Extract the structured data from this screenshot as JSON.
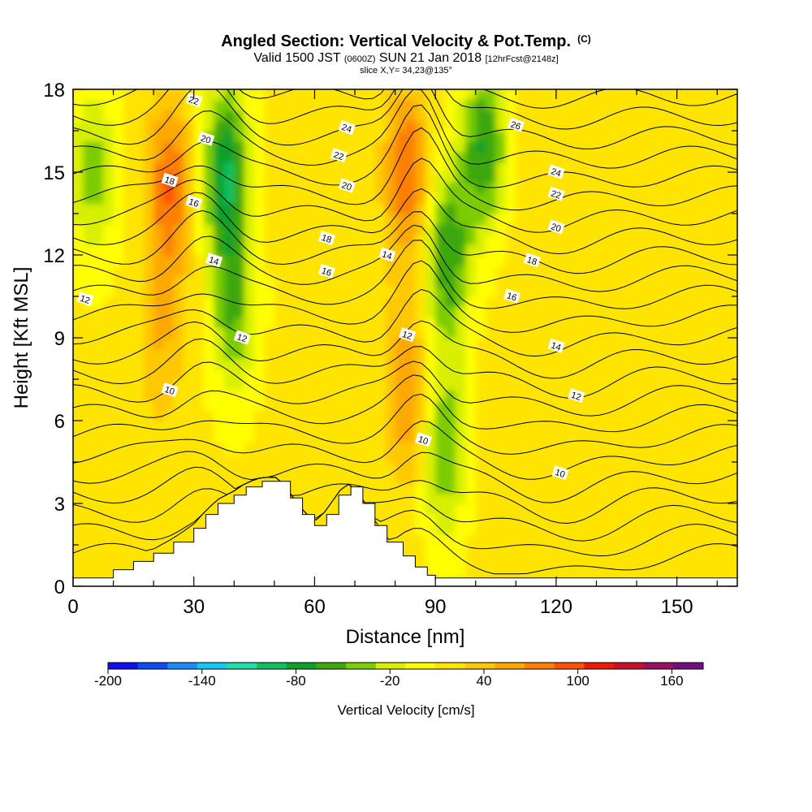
{
  "chart_data": {
    "type": "contour-cross-section",
    "title": "Angled Section: Vertical Velocity & Pot.Temp.",
    "title_mark": "(C)",
    "subtitle": {
      "valid": "Valid 1500 JST",
      "utc": "(0600Z)",
      "date": "SUN 21 Jan 2018",
      "forecast": "[12hrFcst@2148z]",
      "slice": "slice X,Y= 34,23@135°"
    },
    "xlabel": "Distance [nm]",
    "ylabel": "Height [Kft MSL]",
    "xlim": [
      0,
      165
    ],
    "ylim": [
      0,
      18
    ],
    "x_ticks": [
      "0",
      "30",
      "60",
      "90",
      "120",
      "150"
    ],
    "y_ticks": [
      "0",
      "3",
      "6",
      "9",
      "12",
      "15",
      "18"
    ],
    "colorbar": {
      "label": "Vertical Velocity [cm/s]",
      "tick_labels": [
        "-200",
        "-140",
        "-80",
        "-20",
        "40",
        "100",
        "160"
      ],
      "tick_values": [
        -200,
        -140,
        -80,
        -20,
        40,
        100,
        160
      ],
      "min": -200,
      "max": 180,
      "step": 20,
      "colors": [
        "#1010ee",
        "#0a4df2",
        "#1a8cf5",
        "#10c8f2",
        "#20e0a8",
        "#10c060",
        "#0fa02c",
        "#3ca80c",
        "#7ccc06",
        "#d8f000",
        "#ffff00",
        "#ffe400",
        "#ffc800",
        "#ffa800",
        "#ff8000",
        "#ff5000",
        "#ee1a00",
        "#c8102a",
        "#9a1060",
        "#701080"
      ]
    },
    "vertical_velocity_cores": [
      {
        "x": 24,
        "y": 14.5,
        "value": 100
      },
      {
        "x": 22,
        "y": 9,
        "value": 60
      },
      {
        "x": 38,
        "y": 15,
        "value": -80
      },
      {
        "x": 40,
        "y": 10,
        "value": -40
      },
      {
        "x": 83,
        "y": 15,
        "value": 100
      },
      {
        "x": 83,
        "y": 7,
        "value": 80
      },
      {
        "x": 93,
        "y": 12,
        "value": -60
      },
      {
        "x": 92,
        "y": 5,
        "value": -40
      },
      {
        "x": 102,
        "y": 16,
        "value": -60
      },
      {
        "x": 5,
        "y": 15,
        "value": -30
      },
      {
        "x": 65,
        "y": 5,
        "value": 40
      },
      {
        "x": 110,
        "y": 12,
        "value": 30
      },
      {
        "x": 140,
        "y": 10,
        "value": 20
      }
    ],
    "potential_temperature_labels": [
      {
        "x": 30,
        "y": 17.6,
        "text": "22"
      },
      {
        "x": 33,
        "y": 16.2,
        "text": "20"
      },
      {
        "x": 24,
        "y": 14.7,
        "text": "18"
      },
      {
        "x": 30,
        "y": 13.9,
        "text": "16"
      },
      {
        "x": 35,
        "y": 11.8,
        "text": "14"
      },
      {
        "x": 42,
        "y": 9.0,
        "text": "12"
      },
      {
        "x": 24,
        "y": 7.1,
        "text": "10"
      },
      {
        "x": 3,
        "y": 10.4,
        "text": "12"
      },
      {
        "x": 68,
        "y": 16.6,
        "text": "24"
      },
      {
        "x": 66,
        "y": 15.6,
        "text": "22"
      },
      {
        "x": 68,
        "y": 14.5,
        "text": "20"
      },
      {
        "x": 63,
        "y": 12.6,
        "text": "18"
      },
      {
        "x": 63,
        "y": 11.4,
        "text": "16"
      },
      {
        "x": 78,
        "y": 12.0,
        "text": "14"
      },
      {
        "x": 83,
        "y": 9.1,
        "text": "12"
      },
      {
        "x": 87,
        "y": 5.3,
        "text": "10"
      },
      {
        "x": 110,
        "y": 16.7,
        "text": "26"
      },
      {
        "x": 120,
        "y": 15.0,
        "text": "24"
      },
      {
        "x": 120,
        "y": 14.2,
        "text": "22"
      },
      {
        "x": 120,
        "y": 13.0,
        "text": "20"
      },
      {
        "x": 114,
        "y": 11.8,
        "text": "18"
      },
      {
        "x": 109,
        "y": 10.5,
        "text": "16"
      },
      {
        "x": 120,
        "y": 8.7,
        "text": "14"
      },
      {
        "x": 125,
        "y": 6.9,
        "text": "12"
      },
      {
        "x": 121,
        "y": 4.1,
        "text": "10"
      }
    ],
    "terrain": {
      "x": [
        0,
        5,
        10,
        15,
        20,
        25,
        30,
        33,
        36,
        40,
        43,
        47,
        51,
        54,
        57,
        60,
        63,
        66,
        69,
        72,
        75,
        78,
        82,
        85,
        88,
        90,
        165
      ],
      "height": [
        0.3,
        0.3,
        0.6,
        0.9,
        1.2,
        1.6,
        2.1,
        2.6,
        3.0,
        3.3,
        3.6,
        3.8,
        3.8,
        3.2,
        2.6,
        2.2,
        2.6,
        3.3,
        3.6,
        3.0,
        2.2,
        1.6,
        1.1,
        0.7,
        0.4,
        0.3,
        0.3
      ]
    }
  }
}
